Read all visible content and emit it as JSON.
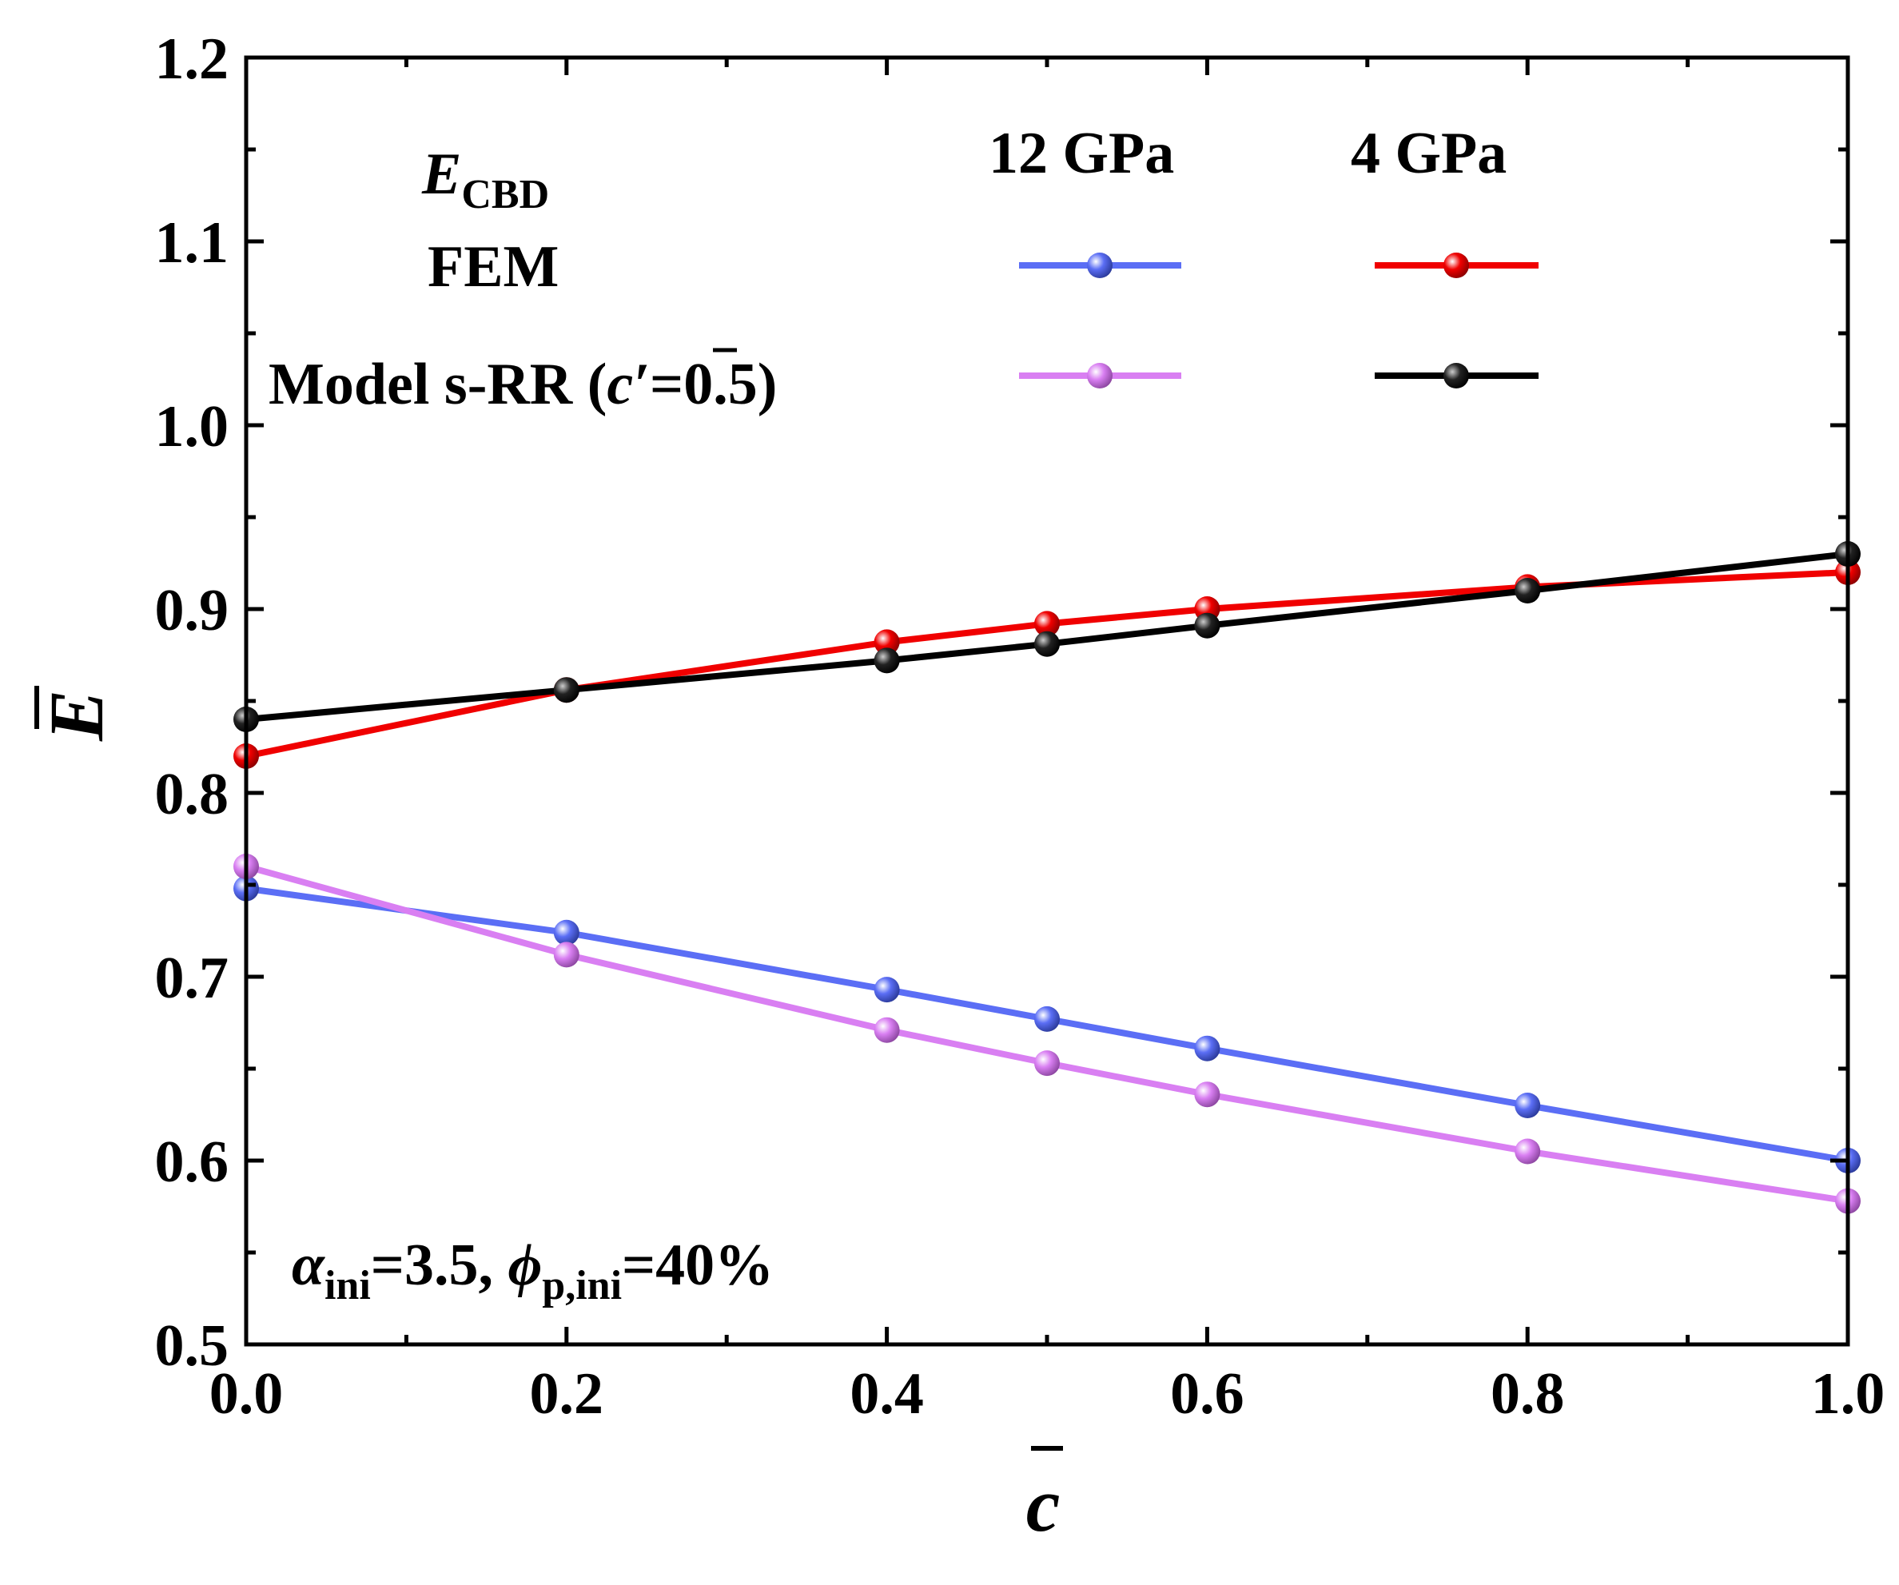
{
  "chart_data": {
    "type": "line",
    "title": "",
    "xlabel": "c",
    "ylabel": "E",
    "xlim": [
      0.0,
      1.0
    ],
    "ylim": [
      0.5,
      1.2
    ],
    "xticks": [
      "0.0",
      "0.2",
      "0.4",
      "0.6",
      "0.8",
      "1.0"
    ],
    "yticks": [
      "0.5",
      "0.6",
      "0.7",
      "0.8",
      "0.9",
      "1.0",
      "1.1",
      "1.2"
    ],
    "x": [
      0.0,
      0.2,
      0.4,
      0.5,
      0.6,
      0.8,
      1.0
    ],
    "series": [
      {
        "name": "FEM 12 GPa",
        "color": "#5b6ef5",
        "values": [
          0.748,
          0.724,
          0.693,
          0.677,
          0.661,
          0.63,
          0.6
        ]
      },
      {
        "name": "FEM 4 GPa",
        "color": "#f00000",
        "values": [
          0.82,
          0.856,
          0.882,
          0.892,
          0.9,
          0.912,
          0.92
        ]
      },
      {
        "name": "Model s-RR 12 GPa",
        "color": "#d97ff2",
        "values": [
          0.76,
          0.712,
          0.671,
          0.653,
          0.636,
          0.605,
          0.578
        ]
      },
      {
        "name": "Model s-RR 4 GPa",
        "color": "#000000",
        "values": [
          0.84,
          0.856,
          0.872,
          0.881,
          0.891,
          0.91,
          0.93
        ]
      }
    ],
    "legend": {
      "header_label_E": "E",
      "header_label_sub": "CBD",
      "col_12": "12 GPa",
      "col_4": "4 GPa",
      "row_fem": "FEM",
      "row_model": "Model s-RR (",
      "row_model_c": "c′",
      "row_model_end": "=0.5)",
      "placement": "top-left"
    },
    "annotation": {
      "alpha": "α",
      "alpha_sub": "ini",
      "alpha_val": "=3.5, ",
      "phi": "ϕ",
      "phi_sub": "p,ini",
      "phi_val": "=40%"
    }
  }
}
